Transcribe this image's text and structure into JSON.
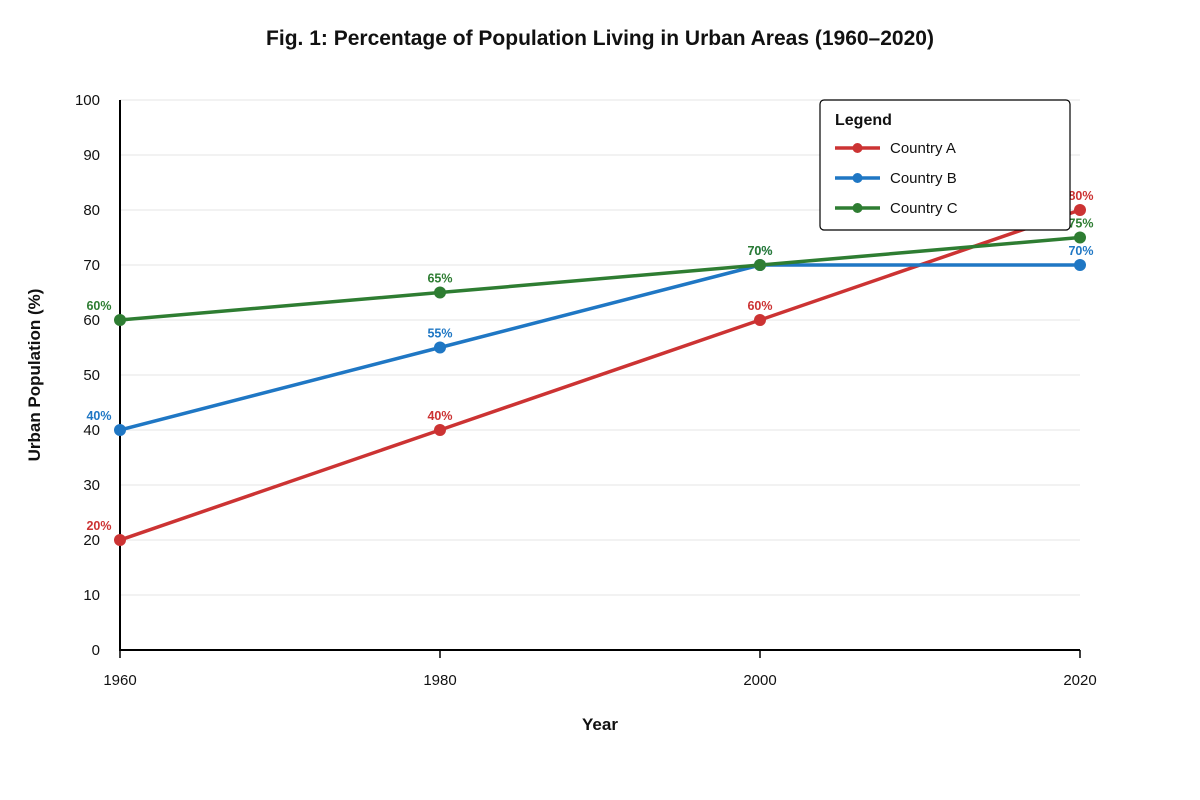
{
  "chart_data": {
    "type": "line",
    "title": "Fig. 1: Percentage of Population Living in Urban Areas (1960–2020)",
    "xlabel": "Year",
    "ylabel": "Urban Population (%)",
    "x": [
      "1960",
      "1980",
      "2000",
      "2020"
    ],
    "y_ticks": [
      "0",
      "10",
      "20",
      "30",
      "40",
      "50",
      "60",
      "70",
      "80",
      "90",
      "100"
    ],
    "ylim": [
      0,
      100
    ],
    "grid": true,
    "legend": {
      "title": "Legend",
      "placement": "top-right"
    },
    "series": [
      {
        "name": "Country A",
        "color": "#cc3333",
        "values": [
          20,
          40,
          60,
          80
        ],
        "labels": [
          "20%",
          "40%",
          "60%",
          "80%"
        ]
      },
      {
        "name": "Country B",
        "color": "#1f77c4",
        "values": [
          40,
          55,
          70,
          70
        ],
        "labels": [
          "40%",
          "55%",
          "70%",
          "70%"
        ]
      },
      {
        "name": "Country C",
        "color": "#2e7d32",
        "values": [
          60,
          65,
          70,
          75
        ],
        "labels": [
          "60%",
          "65%",
          "70%",
          "75%"
        ]
      }
    ]
  }
}
